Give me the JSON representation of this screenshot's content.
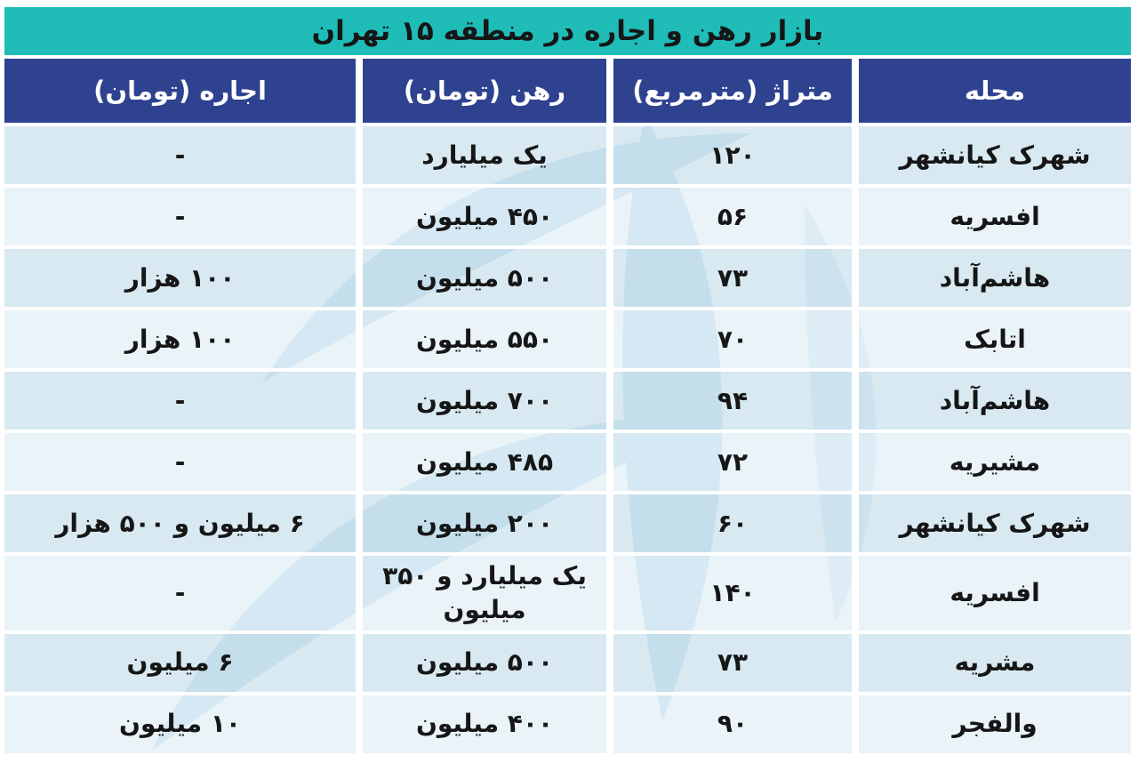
{
  "title": "بازار رهن و اجاره در منطقه ۱۵ تهران",
  "chart_data": {
    "type": "table",
    "title": "بازار رهن و اجاره در منطقه ۱۵ تهران",
    "columns": [
      "محله",
      "متراژ (مترمربع)",
      "رهن (تومان)",
      "اجاره (تومان)"
    ],
    "rows": [
      {
        "neighborhood": "شهرک کیانشهر",
        "area_m2": "۱۲۰",
        "mortgage_toman": "یک میلیارد",
        "rent_toman": "-"
      },
      {
        "neighborhood": "افسریه",
        "area_m2": "۵۶",
        "mortgage_toman": "۴۵۰ میلیون",
        "rent_toman": "-"
      },
      {
        "neighborhood": "هاشم‌آباد",
        "area_m2": "۷۳",
        "mortgage_toman": "۵۰۰ میلیون",
        "rent_toman": "۱۰۰ هزار"
      },
      {
        "neighborhood": "اتابک",
        "area_m2": "۷۰",
        "mortgage_toman": "۵۵۰ میلیون",
        "rent_toman": "۱۰۰ هزار"
      },
      {
        "neighborhood": "هاشم‌آباد",
        "area_m2": "۹۴",
        "mortgage_toman": "۷۰۰ میلیون",
        "rent_toman": "-"
      },
      {
        "neighborhood": "مشیریه",
        "area_m2": "۷۲",
        "mortgage_toman": "۴۸۵ میلیون",
        "rent_toman": "-"
      },
      {
        "neighborhood": "شهرک کیانشهر",
        "area_m2": "۶۰",
        "mortgage_toman": "۲۰۰ میلیون",
        "rent_toman": "۶ میلیون و ۵۰۰ هزار"
      },
      {
        "neighborhood": "افسریه",
        "area_m2": "۱۴۰",
        "mortgage_toman": "یک میلیارد و ۳۵۰ میلیون",
        "rent_toman": "-"
      },
      {
        "neighborhood": "مشریه",
        "area_m2": "۷۳",
        "mortgage_toman": "۵۰۰ میلیون",
        "rent_toman": "۶ میلیون"
      },
      {
        "neighborhood": "والفجر",
        "area_m2": "۹۰",
        "mortgage_toman": "۴۰۰ میلیون",
        "rent_toman": "۱۰ میلیون"
      }
    ]
  },
  "colors": {
    "title_bg": "#1fbcb8",
    "header_bg": "#2e4290",
    "header_text": "#ffffff",
    "text": "#161616",
    "row_odd_bg": "#d9e9f2",
    "row_even_bg": "#eaf3f8",
    "watermark": "#a9cfe8"
  },
  "icons": {
    "watermark": "leaf-swoosh-watermark"
  }
}
